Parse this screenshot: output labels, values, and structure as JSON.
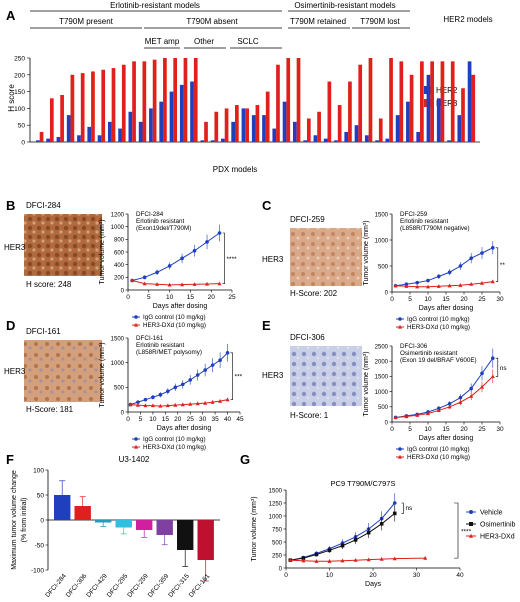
{
  "panel_labels": [
    "A",
    "B",
    "C",
    "D",
    "E",
    "F",
    "G"
  ],
  "colors": {
    "her2": "#1f3fbf",
    "her3": "#e0201c",
    "igg": "#1f3fbf",
    "dxd": "#e0201c"
  },
  "panel_a": {
    "group_top_left": "Erlotinib-resistant models",
    "group_top_mid": "Osimertinib-resistant models",
    "group_top_right": "HER2 models",
    "t790m_present": "T790M present",
    "t790m_absent": "T790M absent",
    "t790m_retained": "T790M retained",
    "t790m_lost": "T790M lost",
    "met_amp": "MET amp",
    "other": "Other",
    "sclc": "SCLC",
    "ylabel": "H score",
    "xlabel": "PDX models",
    "legend_her2": "HER2",
    "legend_her3": "HER3"
  },
  "chart_data": [
    {
      "type": "bar",
      "panel": "A",
      "ylabel": "H score",
      "xlabel": "PDX models",
      "ylim": [
        0,
        250
      ],
      "yticks": [
        0,
        50,
        100,
        150,
        200,
        250
      ],
      "series": [
        {
          "name": "HER2",
          "values": [
            5,
            10,
            15,
            80,
            20,
            45,
            20,
            60,
            40,
            90,
            60,
            100,
            120,
            150,
            170,
            180,
            5,
            5,
            10,
            60,
            100,
            80,
            80,
            40,
            120,
            60,
            5,
            20,
            10,
            5,
            30,
            50,
            20,
            5,
            10,
            80,
            120,
            30,
            200,
            130,
            5,
            80,
            240
          ]
        },
        {
          "name": "HER3",
          "values": [
            30,
            130,
            140,
            200,
            205,
            210,
            215,
            220,
            230,
            240,
            240,
            245,
            250,
            250,
            250,
            250,
            60,
            90,
            100,
            110,
            100,
            110,
            150,
            230,
            250,
            250,
            70,
            90,
            180,
            110,
            180,
            230,
            250,
            70,
            250,
            240,
            200,
            240,
            240,
            240,
            240,
            160,
            200
          ]
        }
      ]
    },
    {
      "type": "line",
      "panel": "B",
      "title": "DFCI-284",
      "subtitle1": "Erlotinib resistant",
      "subtitle2": "(Exon19del/T790M)",
      "xlabel": "Days after dosing",
      "ylabel": "Tumor volume (mm³)",
      "xlim": [
        0,
        25
      ],
      "ylim": [
        0,
        1200
      ],
      "xticks": [
        0,
        5,
        10,
        15,
        20,
        25
      ],
      "yticks": [
        0,
        200,
        400,
        600,
        800,
        1000,
        1200
      ],
      "series": [
        {
          "name": "IgG control (10 mg/kg)",
          "x": [
            1,
            4,
            7,
            10,
            13,
            16,
            19,
            22
          ],
          "y": [
            150,
            200,
            280,
            380,
            500,
            620,
            760,
            900
          ]
        },
        {
          "name": "HER3-DXd (10 mg/kg)",
          "x": [
            1,
            4,
            7,
            10,
            13,
            16,
            19,
            22
          ],
          "y": [
            150,
            100,
            90,
            80,
            85,
            90,
            95,
            100
          ]
        }
      ],
      "sig": "****"
    },
    {
      "type": "line",
      "panel": "C",
      "title": "DFCI-259",
      "subtitle1": "Erlotinib resistant",
      "subtitle2": "(L858R/T790M negative)",
      "xlabel": "Days after dosing",
      "ylabel": "Tumor volume (mm³)",
      "xlim": [
        0,
        30
      ],
      "ylim": [
        0,
        1500
      ],
      "xticks": [
        0,
        5,
        10,
        15,
        20,
        25,
        30
      ],
      "yticks": [
        0,
        500,
        1000,
        1500
      ],
      "series": [
        {
          "name": "IgG control (10 mg/kg)",
          "x": [
            1,
            4,
            7,
            10,
            13,
            16,
            19,
            22,
            25,
            28
          ],
          "y": [
            120,
            150,
            180,
            220,
            300,
            380,
            500,
            650,
            750,
            850
          ]
        },
        {
          "name": "HER3-DXd (10 mg/kg)",
          "x": [
            1,
            4,
            7,
            10,
            13,
            16,
            19,
            22,
            25,
            28
          ],
          "y": [
            120,
            110,
            100,
            100,
            110,
            120,
            130,
            150,
            170,
            200
          ]
        }
      ],
      "sig": "**"
    },
    {
      "type": "line",
      "panel": "D",
      "title": "DFCI-161",
      "subtitle1": "Erlotinib resistant",
      "subtitle2": "(L858R/MET polysomy)",
      "xlabel": "Days after dosing",
      "ylabel": "Tumor volume (mm³)",
      "xlim": [
        0,
        45
      ],
      "ylim": [
        0,
        1500
      ],
      "xticks": [
        0,
        5,
        10,
        15,
        20,
        25,
        30,
        35,
        40,
        45
      ],
      "yticks": [
        0,
        500,
        1000,
        1500
      ],
      "series": [
        {
          "name": "IgG control (10 mg/kg)",
          "x": [
            1,
            4,
            7,
            10,
            13,
            16,
            19,
            22,
            25,
            28,
            31,
            34,
            37,
            40
          ],
          "y": [
            150,
            200,
            250,
            300,
            350,
            420,
            500,
            560,
            650,
            750,
            850,
            950,
            1050,
            1200
          ]
        },
        {
          "name": "HER3-DXd (10 mg/kg)",
          "x": [
            1,
            4,
            7,
            10,
            13,
            16,
            19,
            22,
            25,
            28,
            31,
            34,
            37,
            40
          ],
          "y": [
            150,
            140,
            130,
            130,
            120,
            130,
            140,
            150,
            160,
            170,
            180,
            200,
            220,
            250
          ]
        }
      ],
      "sig": "***"
    },
    {
      "type": "line",
      "panel": "E",
      "title": "DFCI-306",
      "subtitle1": "Osimertinib resistant",
      "subtitle2": "(Exon 19 del/BRAF V600E)",
      "xlabel": "Days after dosing",
      "ylabel": "Tumor volume (mm³)",
      "xlim": [
        0,
        30
      ],
      "ylim": [
        0,
        2500
      ],
      "xticks": [
        0,
        5,
        10,
        15,
        20,
        25,
        30
      ],
      "yticks": [
        0,
        500,
        1000,
        1500,
        2000,
        2500
      ],
      "series": [
        {
          "name": "IgG control (10 mg/kg)",
          "x": [
            1,
            4,
            7,
            10,
            13,
            16,
            19,
            22,
            25,
            28
          ],
          "y": [
            150,
            200,
            250,
            330,
            450,
            600,
            800,
            1100,
            1600,
            2100
          ]
        },
        {
          "name": "HER3-DXd (10 mg/kg)",
          "x": [
            1,
            4,
            7,
            10,
            13,
            16,
            19,
            22,
            25,
            28
          ],
          "y": [
            150,
            180,
            220,
            280,
            380,
            500,
            650,
            850,
            1150,
            1500
          ]
        }
      ],
      "sig": "ns"
    },
    {
      "type": "bar",
      "panel": "F",
      "title": "U3-1402",
      "ylabel": "Maximum tumor volume change (% from initial)",
      "ylim": [
        -100,
        100
      ],
      "yticks": [
        -100,
        -50,
        0,
        50,
        100
      ],
      "categories": [
        "DFCI-284",
        "DFCI-306",
        "DFCI-429",
        "DFCI-295",
        "DFCI-259",
        "DFCI-359",
        "DFCI-315",
        "DFCI-161"
      ],
      "values": [
        50,
        28,
        -5,
        -15,
        -20,
        -30,
        -60,
        -80
      ],
      "bar_colors": [
        "#1f3fbf",
        "#e0201c",
        "#1f9fbf",
        "#2fbfdf",
        "#d020a0",
        "#8040a0",
        "#111111",
        "#c01030"
      ]
    },
    {
      "type": "line",
      "panel": "G",
      "title": "PC9 T790M/C797S",
      "xlabel": "Days",
      "ylabel": "Tumor volume (mm³)",
      "xlim": [
        0,
        40
      ],
      "ylim": [
        0,
        1500
      ],
      "xticks": [
        0,
        10,
        20,
        30,
        40
      ],
      "yticks": [
        0,
        250,
        500,
        750,
        1000,
        1250,
        1500
      ],
      "series": [
        {
          "name": "Vehicle",
          "x": [
            1,
            4,
            7,
            10,
            13,
            16,
            19,
            22,
            25
          ],
          "y": [
            150,
            200,
            280,
            370,
            480,
            600,
            750,
            950,
            1250
          ]
        },
        {
          "name": "Osimertinib",
          "x": [
            1,
            4,
            7,
            10,
            13,
            16,
            19,
            22,
            25
          ],
          "y": [
            150,
            190,
            260,
            340,
            430,
            540,
            680,
            850,
            1050
          ]
        },
        {
          "name": "HER3-DXd",
          "x": [
            1,
            4,
            7,
            10,
            13,
            16,
            19,
            22,
            25,
            32
          ],
          "y": [
            150,
            140,
            130,
            130,
            140,
            150,
            160,
            170,
            180,
            190
          ]
        }
      ],
      "sig1": "ns",
      "sig2": "****"
    }
  ],
  "ihc": {
    "b": {
      "model": "DFCI-284",
      "marker": "HER3",
      "score": "H score: 248"
    },
    "c": {
      "model": "DFCI-259",
      "marker": "HER3",
      "score": "H-Score: 202"
    },
    "d": {
      "model": "DFCI-161",
      "marker": "HER3",
      "score": "H-Score: 181"
    },
    "e": {
      "model": "DFCI-306",
      "marker": "HER3",
      "score": "H-Score: 1"
    }
  }
}
